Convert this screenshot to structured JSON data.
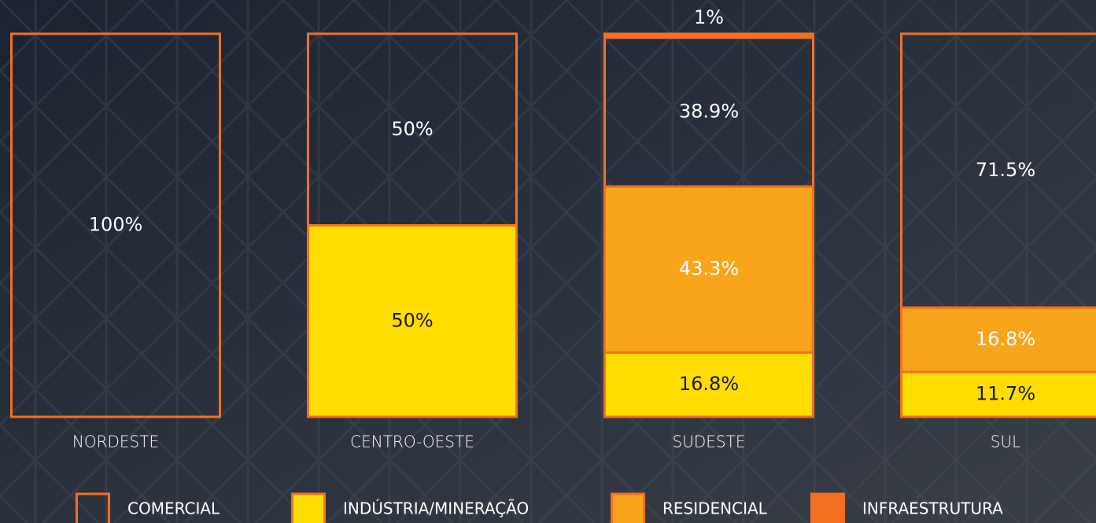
{
  "chart_data": {
    "type": "stacked_bar",
    "categories": [
      "NORDESTE",
      "CENTRO-OESTE",
      "SUDESTE",
      "SUL"
    ],
    "series": [
      {
        "name": "COMERCIAL",
        "color": "none",
        "values": [
          100,
          50,
          38.9,
          71.5
        ],
        "value_labels": [
          "100%",
          "50%",
          "38.9%",
          "71.5%"
        ]
      },
      {
        "name": "INDÚSTRIA/MINERAÇÃO",
        "color": "#ffdd00",
        "values": [
          null,
          50,
          16.8,
          11.7
        ],
        "value_labels": [
          null,
          "50%",
          "16.8%",
          "11.7%"
        ]
      },
      {
        "name": "RESIDENCIAL",
        "color": "#f9a51b",
        "values": [
          null,
          null,
          43.3,
          16.8
        ],
        "value_labels": [
          null,
          null,
          "43.3%",
          "16.8%"
        ]
      },
      {
        "name": "INFRAESTRUTURA",
        "color": "#f37021",
        "values": [
          null,
          null,
          1,
          null
        ],
        "value_labels": [
          null,
          null,
          "1%",
          null
        ]
      }
    ],
    "edge_color": "#f37021"
  }
}
